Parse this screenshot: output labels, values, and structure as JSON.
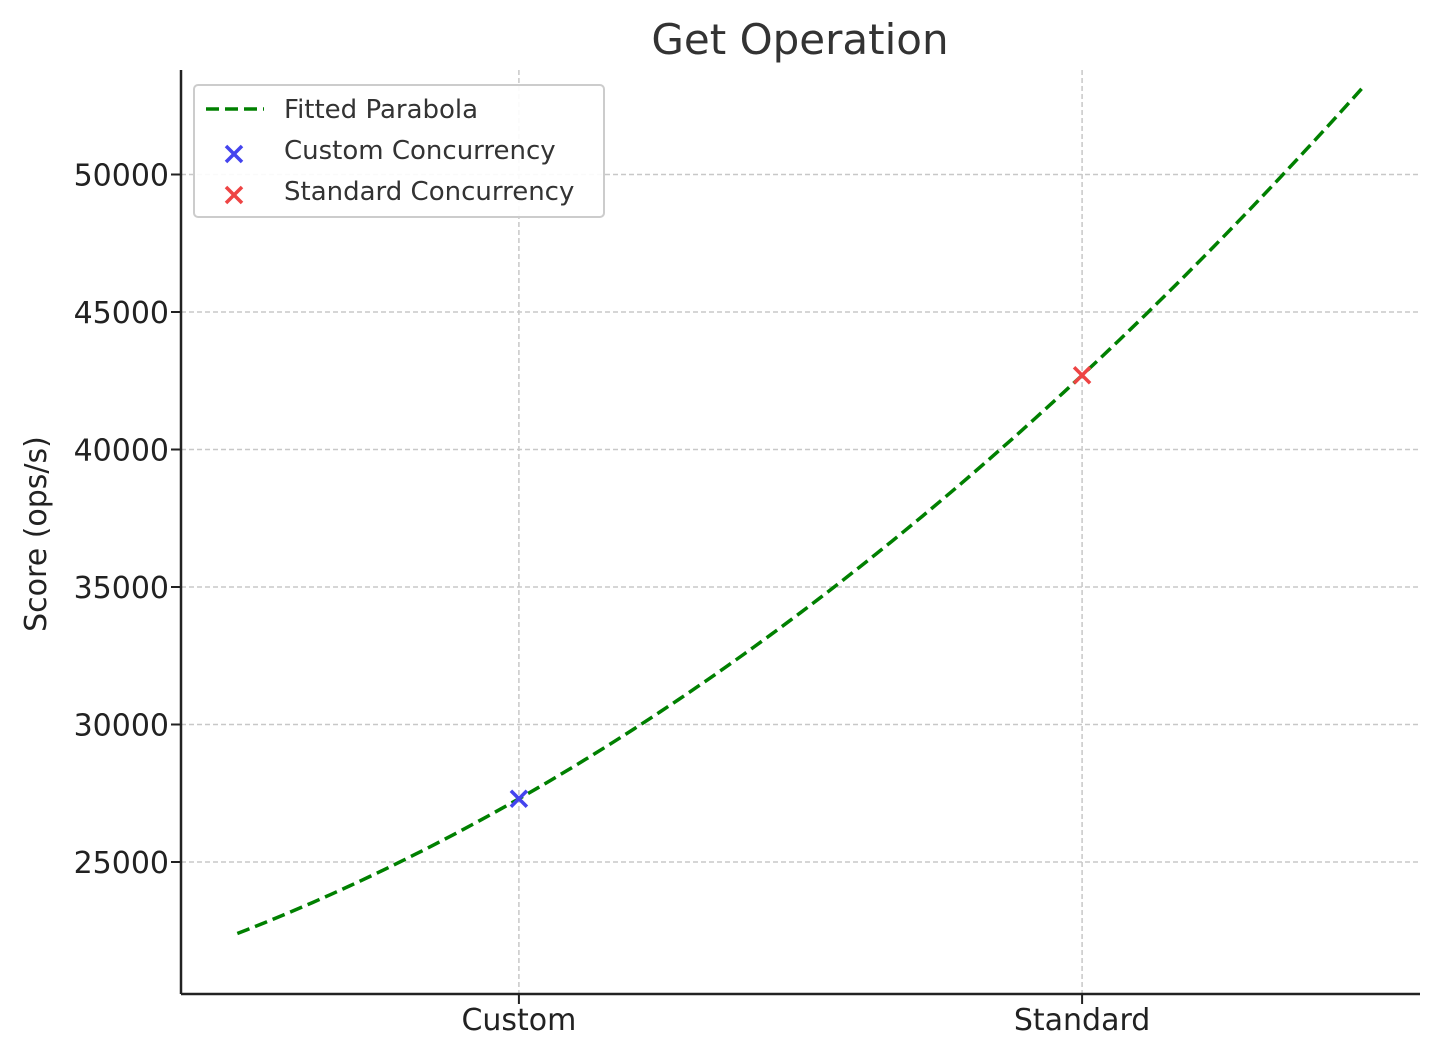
{
  "chart_data": {
    "type": "scatter",
    "title": "Get Operation",
    "xlabel": "",
    "ylabel": "Score (ops/s)",
    "categories": [
      "Custom",
      "Standard"
    ],
    "category_positions": [
      0,
      1
    ],
    "xlim": [
      -0.6,
      1.6
    ],
    "ylim": [
      20200,
      53800
    ],
    "yticks": [
      25000,
      30000,
      35000,
      40000,
      45000,
      50000
    ],
    "ytick_labels": [
      "25000",
      "30000",
      "35000",
      "40000",
      "45000",
      "50000"
    ],
    "grid": true,
    "legend_position": "top-left",
    "series": [
      {
        "name": "Fitted Parabola",
        "kind": "line",
        "style": "dashed",
        "color": "#008000",
        "x_range": [
          -0.5,
          1.5
        ],
        "curve": {
          "a": 3733.33,
          "b": 11666.67,
          "c": 27300
        },
        "x": [
          -0.5,
          0.0,
          0.5,
          1.0,
          1.5
        ],
        "values": [
          22400,
          27300,
          34067,
          42700,
          53200
        ]
      },
      {
        "name": "Custom Concurrency",
        "kind": "scatter",
        "marker": "x",
        "color": "#4444ee",
        "x": [
          0
        ],
        "values": [
          27300
        ]
      },
      {
        "name": "Standard Concurrency",
        "kind": "scatter",
        "marker": "x",
        "color": "#ee4444",
        "x": [
          1
        ],
        "values": [
          42700
        ]
      }
    ]
  }
}
